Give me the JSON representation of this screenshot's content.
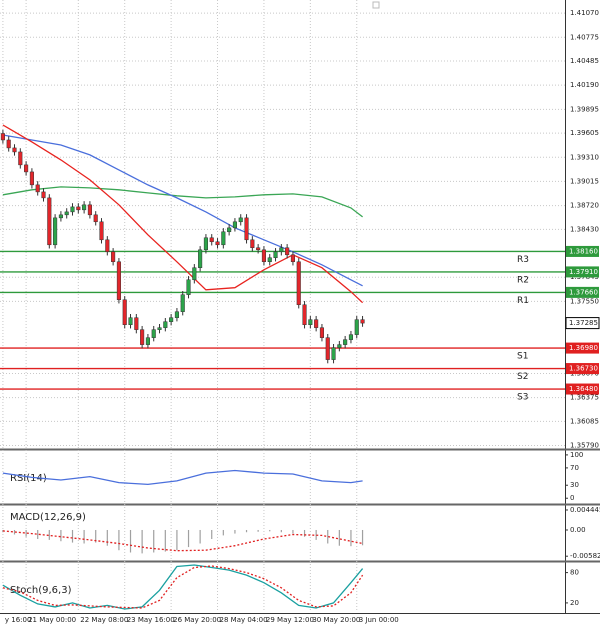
{
  "chart_data": [
    {
      "type": "candlestick",
      "xlim": [
        -0.5,
        96.9
      ],
      "ylim": [
        1.3576,
        1.4123
      ],
      "grid": true,
      "up_color": "#2ca44a",
      "down_color": "#e3262b",
      "yticks": [
        {
          "value": 1.4107,
          "label": "1.41070"
        },
        1.40775,
        1.40485,
        {
          "value": 1.4019,
          "label": "1.40190"
        },
        1.39895,
        1.39605,
        {
          "value": 1.3931,
          "label": "1.39310"
        },
        1.39015,
        {
          "value": 1.3872,
          "label": "1.38720"
        },
        {
          "value": 1.3843,
          "label": "1.38430"
        },
        1.37845,
        {
          "value": 1.3755,
          "label": "1.37550"
        },
        {
          "value": 1.3667,
          "label": "1.36670"
        },
        1.36375,
        1.36085,
        {
          "value": 1.3579,
          "label": "1.35790"
        }
      ],
      "xticks": [
        {
          "value": 0,
          "label": "y 16:00"
        },
        {
          "value": 4,
          "label": "21 May 00:00"
        },
        {
          "value": 13,
          "label": "22 May 08:00"
        },
        {
          "value": 21,
          "label": "23 May 16:00"
        },
        {
          "value": 29,
          "label": "26 May 20:00"
        },
        {
          "value": 37,
          "label": "28 May 04:00"
        },
        {
          "value": 45,
          "label": "29 May 12:00"
        },
        {
          "value": 53,
          "label": "30 May 20:00"
        },
        {
          "value": 61,
          "label": "3 Jun 00:00"
        }
      ],
      "open": [
        1.396,
        1.39521,
        1.39424,
        1.39375,
        1.39217,
        1.39131,
        1.38973,
        1.38887,
        1.38814,
        1.38241,
        1.3857,
        1.38607,
        1.38643,
        1.38704,
        1.38668,
        1.38729,
        1.38607,
        1.38522,
        1.38302,
        1.38156,
        1.38034,
        1.3757,
        1.37265,
        1.37351,
        1.37205,
        1.37022,
        1.37107,
        1.37205,
        1.37229,
        1.37302,
        1.37351,
        1.37424,
        1.37632,
        1.37814,
        1.37961,
        1.3818,
        1.38327,
        1.38278,
        1.38241,
        1.384,
        1.38448,
        1.38522,
        1.3857,
        1.38302,
        1.38205,
        1.3818,
        1.38034,
        1.38083,
        1.38156,
        1.38205,
        1.38119,
        1.38034,
        1.37509,
        1.37265,
        1.37327,
        1.37229,
        1.37107,
        1.36839,
        1.36985,
        1.37022,
        1.37083,
        1.37144,
        1.37327
      ],
      "high": [
        1.39645,
        1.39566,
        1.39469,
        1.3942,
        1.39262,
        1.39176,
        1.39018,
        1.38932,
        1.38859,
        1.38615,
        1.38652,
        1.38688,
        1.38749,
        1.38749,
        1.38774,
        1.38774,
        1.38652,
        1.38567,
        1.38347,
        1.38201,
        1.38079,
        1.37615,
        1.37396,
        1.37396,
        1.3725,
        1.37152,
        1.3725,
        1.37274,
        1.37347,
        1.37396,
        1.37469,
        1.37677,
        1.37859,
        1.38006,
        1.38225,
        1.38372,
        1.38372,
        1.38323,
        1.38445,
        1.38493,
        1.38567,
        1.38615,
        1.38615,
        1.38347,
        1.3825,
        1.38225,
        1.38128,
        1.38201,
        1.3825,
        1.3825,
        1.38164,
        1.38079,
        1.37554,
        1.37372,
        1.37372,
        1.37274,
        1.37152,
        1.3703,
        1.37067,
        1.37128,
        1.37189,
        1.37372,
        1.37372
      ],
      "low": [
        1.39476,
        1.39379,
        1.3933,
        1.39172,
        1.39086,
        1.38928,
        1.38842,
        1.38769,
        1.38196,
        1.38196,
        1.38525,
        1.38562,
        1.38598,
        1.38623,
        1.38623,
        1.38562,
        1.38477,
        1.38257,
        1.38111,
        1.37989,
        1.37525,
        1.3722,
        1.3722,
        1.3716,
        1.36977,
        1.36977,
        1.37062,
        1.3716,
        1.37184,
        1.37257,
        1.37306,
        1.37379,
        1.37587,
        1.37769,
        1.37916,
        1.38135,
        1.38233,
        1.38196,
        1.38196,
        1.38355,
        1.38403,
        1.38477,
        1.38257,
        1.3816,
        1.38135,
        1.37989,
        1.37989,
        1.38038,
        1.38111,
        1.38074,
        1.37989,
        1.37464,
        1.3722,
        1.3722,
        1.37184,
        1.37062,
        1.36794,
        1.36794,
        1.3694,
        1.36977,
        1.37038,
        1.37099,
        1.3724
      ],
      "close": [
        1.39521,
        1.39424,
        1.39375,
        1.39217,
        1.39131,
        1.38973,
        1.38887,
        1.38814,
        1.38241,
        1.3857,
        1.38607,
        1.38643,
        1.38704,
        1.38668,
        1.38729,
        1.38607,
        1.38522,
        1.38302,
        1.38156,
        1.38034,
        1.3757,
        1.37265,
        1.37351,
        1.37205,
        1.37022,
        1.37107,
        1.37205,
        1.37229,
        1.37302,
        1.37351,
        1.37424,
        1.37632,
        1.37814,
        1.37961,
        1.3818,
        1.38327,
        1.38278,
        1.38241,
        1.384,
        1.38448,
        1.38522,
        1.3857,
        1.38302,
        1.38205,
        1.3818,
        1.38034,
        1.38083,
        1.38156,
        1.38205,
        1.38119,
        1.38034,
        1.37509,
        1.37265,
        1.37327,
        1.37229,
        1.37107,
        1.36839,
        1.36985,
        1.37022,
        1.37083,
        1.37144,
        1.37327,
        1.37285
      ],
      "series": [
        {
          "color": "#3aa655",
          "x": [
            0,
            5,
            10,
            15,
            20,
            25,
            30,
            35,
            40,
            45,
            50,
            55,
            60,
            62
          ],
          "values": [
            1.38851,
            1.38912,
            1.38948,
            1.38936,
            1.38912,
            1.38875,
            1.38839,
            1.38814,
            1.38826,
            1.38851,
            1.38863,
            1.38826,
            1.38692,
            1.38582
          ]
        },
        {
          "color": "#4a6fdc",
          "x": [
            0,
            5,
            10,
            15,
            20,
            25,
            30,
            35,
            40,
            45,
            50,
            55,
            60,
            62
          ],
          "values": [
            1.39582,
            1.39521,
            1.3946,
            1.39339,
            1.39156,
            1.38973,
            1.38814,
            1.38643,
            1.38448,
            1.38302,
            1.38156,
            1.37997,
            1.37814,
            1.37741
          ]
        },
        {
          "color": "#e8231f",
          "x": [
            0,
            5,
            10,
            15,
            20,
            25,
            30,
            35,
            40,
            45,
            50,
            55,
            60,
            62
          ],
          "values": [
            1.39704,
            1.39497,
            1.39278,
            1.39034,
            1.38729,
            1.38363,
            1.38034,
            1.37692,
            1.37717,
            1.37936,
            1.38119,
            1.37961,
            1.37668,
            1.37534
          ]
        }
      ],
      "levels": {
        "names": [
          "R3",
          "R2",
          "R1",
          "S1",
          "S2",
          "S3"
        ],
        "values": [
          1.3816,
          1.3791,
          1.3766,
          1.3698,
          1.3673,
          1.3648
        ],
        "value_labels": [
          "1.38160",
          "1.37910",
          "1.37660",
          "1.36980",
          "1.36730",
          "1.36480"
        ],
        "colors": [
          "#2e9a3c",
          "#2e9a3c",
          "#2e9a3c",
          "#e02020",
          "#e02020",
          "#e02020"
        ]
      },
      "last": 1.37285
    },
    {
      "type": "line",
      "title": "RSI(14)",
      "ylim": [
        -11,
        109
      ],
      "yticks": [
        100,
        70,
        30,
        0
      ],
      "x": [
        0,
        5,
        10,
        15,
        20,
        25,
        30,
        35,
        40,
        45,
        50,
        55,
        60,
        62
      ],
      "series": [
        {
          "color": "#4a6fdc",
          "values": [
            58,
            48,
            42,
            50,
            36,
            32,
            40,
            58,
            64,
            58,
            56,
            40,
            36,
            40
          ]
        }
      ]
    },
    {
      "type": "combo",
      "title": "MACD(12,26,9)",
      "ylim": [
        -0.00667,
        0.00533
      ],
      "yticks": [
        0.004445,
        {
          "value": 0,
          "label": "0.00"
        },
        -0.005827
      ],
      "bars": {
        "color": "#a0a0a0",
        "x": [
          0,
          2,
          4,
          6,
          8,
          10,
          12,
          14,
          16,
          18,
          20,
          22,
          24,
          26,
          28,
          30,
          32,
          34,
          36,
          38,
          40,
          42,
          44,
          46,
          48,
          50,
          52,
          54,
          56,
          58,
          60,
          62
        ],
        "values": [
          -0.0005,
          -0.001,
          -0.0015,
          -0.002,
          -0.0022,
          -0.0025,
          -0.0028,
          -0.003,
          -0.0028,
          -0.0035,
          -0.0045,
          -0.005,
          -0.0052,
          -0.005,
          -0.0048,
          -0.0045,
          -0.0038,
          -0.003,
          -0.002,
          -0.0012,
          -0.0008,
          -0.0005,
          -0.0004,
          -0.0003,
          -0.0005,
          -0.0008,
          -0.0015,
          -0.0022,
          -0.003,
          -0.0035,
          -0.0036,
          -0.0034
        ]
      },
      "x": [
        0,
        5,
        10,
        15,
        20,
        25,
        30,
        35,
        40,
        45,
        50,
        55,
        60,
        62
      ],
      "series": [
        {
          "color": "#e02020",
          "dashed": true,
          "values": [
            -0.0002,
            -0.0008,
            -0.0015,
            -0.0022,
            -0.003,
            -0.004,
            -0.0046,
            -0.0045,
            -0.0035,
            -0.002,
            -0.001,
            -0.0012,
            -0.0025,
            -0.003
          ]
        }
      ]
    },
    {
      "type": "line",
      "title": "Stoch(9,6,3)",
      "ylim": [
        2,
        99
      ],
      "yticks": [
        80,
        20
      ],
      "x": [
        0,
        3,
        6,
        9,
        12,
        15,
        18,
        21,
        24,
        27,
        30,
        33,
        36,
        39,
        42,
        45,
        48,
        51,
        54,
        57,
        60,
        62
      ],
      "series": [
        {
          "color": "#1aa0a0",
          "values": [
            55,
            35,
            18,
            12,
            20,
            10,
            15,
            8,
            12,
            45,
            92,
            95,
            90,
            85,
            75,
            60,
            40,
            15,
            10,
            20,
            60,
            88
          ]
        },
        {
          "color": "#e02020",
          "dashed": true,
          "values": [
            50,
            42,
            25,
            15,
            16,
            14,
            12,
            11,
            10,
            25,
            70,
            90,
            93,
            88,
            80,
            68,
            50,
            25,
            12,
            14,
            40,
            75
          ]
        }
      ]
    }
  ]
}
